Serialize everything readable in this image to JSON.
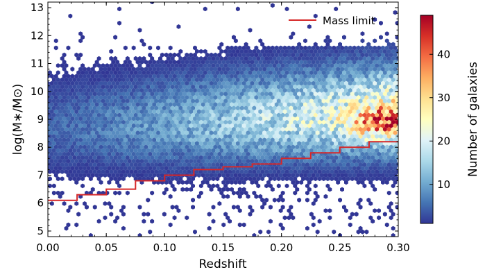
{
  "chart_data": {
    "type": "heatmap",
    "subtype": "hexbin-density-with-step-line",
    "xlabel": "Redshift",
    "ylabel": "log(M∗/M⊙)",
    "xlim": [
      0.0,
      0.3
    ],
    "ylim": [
      4.8,
      13.2
    ],
    "xticks": [
      0.0,
      0.05,
      0.1,
      0.15,
      0.2,
      0.25,
      0.3
    ],
    "xtick_labels": [
      "0.00",
      "0.05",
      "0.10",
      "0.15",
      "0.20",
      "0.25",
      "0.30"
    ],
    "yticks": [
      5,
      6,
      7,
      8,
      9,
      10,
      11,
      12,
      13
    ],
    "ytick_labels": [
      "5",
      "6",
      "7",
      "8",
      "9",
      "10",
      "11",
      "12",
      "13"
    ],
    "colorbar": {
      "label": "Number of galaxies",
      "range": [
        1,
        49
      ],
      "ticks": [
        10,
        20,
        30,
        40
      ],
      "tick_labels": [
        "10",
        "20",
        "30",
        "40"
      ],
      "colormap": "RdYlBu_r"
    },
    "legend": {
      "position": "top-right"
    },
    "series": [
      {
        "name": "Mass limit",
        "type": "step",
        "color": "#d62728",
        "x": [
          0.0,
          0.025,
          0.05,
          0.075,
          0.1,
          0.125,
          0.15,
          0.175,
          0.2,
          0.225,
          0.25,
          0.275,
          0.3
        ],
        "y": [
          6.1,
          6.3,
          6.5,
          6.8,
          7.0,
          7.2,
          7.3,
          7.4,
          7.6,
          7.8,
          8.0,
          8.2,
          8.2
        ]
      }
    ],
    "density_model": {
      "description": "Galaxy counts per hexagonal bin; bulk between log mass 7 and 11, peak count ~48 near redshift 0.29, log mass 8.9",
      "peak": {
        "x": 0.29,
        "y": 8.9,
        "count": 48
      }
    }
  }
}
